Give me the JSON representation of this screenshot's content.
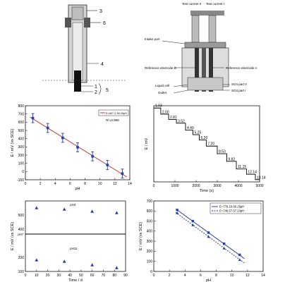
{
  "electrode_diagram": {
    "callouts": [
      "3",
      "6",
      "4",
      "1",
      "2",
      "5"
    ]
  },
  "cell_diagram": {
    "labels": {
      "test_current_2": "Test current II",
      "test_current_1": "Test current I",
      "intake_port": "Intake port",
      "ref_b": "Reference electrode B",
      "ref_a": "Reference electrode A",
      "liquid_cell": "Liquid cell",
      "outlet": "Outlet",
      "so4_part_2": "SO4 part II",
      "so4_part_1": "SO4 part I"
    }
  },
  "chart_data": [
    {
      "type": "scatter",
      "id": "calibration",
      "xlabel": "pH",
      "ylabel": "E / mV (vs SCE)",
      "xlim": [
        0,
        14
      ],
      "ylim": [
        -100,
        800
      ],
      "xticks": [
        0,
        2,
        4,
        6,
        8,
        10,
        12,
        14
      ],
      "yticks": [
        -100,
        0,
        100,
        200,
        300,
        400,
        500,
        600,
        700,
        800
      ],
      "x": [
        1,
        3,
        5,
        7,
        9,
        11,
        13
      ],
      "y": [
        650,
        530,
        410,
        295,
        185,
        80,
        -25
      ],
      "errors": [
        55,
        55,
        55,
        55,
        55,
        55,
        55
      ],
      "fit": {
        "intercept": 697.2,
        "slope": -56.09
      },
      "legend_label": "E=697.2-56.09pH",
      "annotation": "R²=0.999",
      "legend_position": "top-right"
    },
    {
      "type": "line",
      "id": "response-time",
      "xlabel": "Time (s)",
      "ylabel": "E / mV",
      "xlim": [
        0,
        5000
      ],
      "xticks": [
        0,
        1000,
        2000,
        3000,
        4000,
        5000
      ],
      "step_times": [
        0,
        330,
        700,
        1070,
        1500,
        1850,
        2150,
        2480,
        3000,
        3450,
        3900,
        4380,
        4800,
        5000
      ],
      "ph_labels": [
        "1.03",
        "2.00",
        "2.81",
        "3.52",
        "4.49",
        "5.25",
        "6.20",
        "7.20",
        "8.53",
        "9.82",
        "11.15",
        "12.14",
        "13.14"
      ],
      "levels_norm": [
        0.97,
        0.89,
        0.82,
        0.77,
        0.68,
        0.62,
        0.55,
        0.47,
        0.37,
        0.27,
        0.17,
        0.1,
        0.03
      ]
    },
    {
      "type": "scatter",
      "id": "stability",
      "xlabel": "Time / d",
      "ylabel": "E / mV (vs SCE)",
      "xlim": [
        0,
        90
      ],
      "xticks": [
        0,
        10,
        20,
        30,
        40,
        50,
        60,
        70,
        80,
        90
      ],
      "yticks": [
        100,
        200,
        300,
        400,
        500
      ],
      "ylim": [
        100,
        600
      ],
      "series": [
        {
          "name": "pH4",
          "x": [
            10,
            35,
            60,
            82
          ],
          "y": [
            550,
            540,
            525,
            515
          ]
        },
        {
          "name": "pH11",
          "x": [
            10,
            35,
            60,
            82
          ],
          "y": [
            180,
            170,
            145,
            125
          ]
        }
      ],
      "divider_label": "pH7",
      "divider_y": 365
    },
    {
      "type": "scatter",
      "id": "comparison",
      "xlabel": "pH",
      "ylabel": "E / mV (vs SCE)",
      "xlim": [
        0,
        14
      ],
      "ylim": [
        0,
        700
      ],
      "xticks": [
        0,
        2,
        4,
        6,
        8,
        10,
        12,
        14
      ],
      "yticks": [
        0,
        100,
        200,
        300,
        400,
        500,
        600,
        700
      ],
      "series": [
        {
          "name": "E=779.19-56.25pH",
          "x": [
            3,
            5,
            7,
            9,
            11
          ],
          "y": [
            610,
            500,
            385,
            275,
            165
          ],
          "fit": {
            "intercept": 779.19,
            "slope": -56.25
          }
        },
        {
          "name": "E=746.57-57.23pH",
          "x": [
            3,
            5,
            7,
            9,
            11
          ],
          "y": [
            580,
            460,
            345,
            230,
            115
          ],
          "fit": {
            "intercept": 746.57,
            "slope": -57.23
          }
        }
      ],
      "legend_position": "top-right"
    }
  ],
  "colors": {
    "axis": "#111111",
    "blue_marker": "#1f3fb0",
    "red_fit": "#c0392b",
    "gray_body": "#cfcfcf",
    "dark_band": "#555555"
  }
}
